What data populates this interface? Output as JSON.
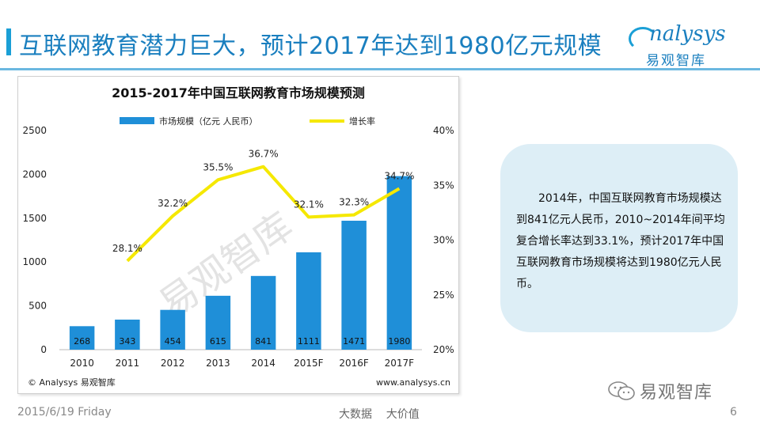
{
  "header": {
    "title": "互联网教育潜力巨大，预计2017年达到1980亿元规模",
    "logo_word": "nalysys",
    "logo_sub": "易观智库"
  },
  "chart_data": {
    "type": "bar+line",
    "title": "2015-2017年中国互联网教育市场规模预测",
    "categories": [
      "2010",
      "2011",
      "2012",
      "2013",
      "2014",
      "2015F",
      "2016F",
      "2017F"
    ],
    "series": [
      {
        "name": "市场规模（亿元 人民币）",
        "type": "bar",
        "axis": "left",
        "values": [
          268,
          343,
          454,
          615,
          841,
          1111,
          1471,
          1980
        ]
      },
      {
        "name": "增长率",
        "type": "line",
        "axis": "right",
        "values": [
          null,
          28.1,
          32.2,
          35.5,
          36.7,
          32.1,
          32.3,
          34.7
        ],
        "labels": [
          "",
          "28.1%",
          "32.2%",
          "35.5%",
          "36.7%",
          "32.1%",
          "32.3%",
          "34.7%"
        ]
      }
    ],
    "left_axis": {
      "min": 0,
      "max": 2500,
      "ticks": [
        "0",
        "500",
        "1000",
        "1500",
        "2000",
        "2500"
      ]
    },
    "right_axis": {
      "min": 20,
      "max": 40,
      "ticks": [
        "20%",
        "25%",
        "30%",
        "35%",
        "40%"
      ]
    },
    "watermark": "易观智库",
    "source_left": "© Analysys 易观智库",
    "source_right": "www.analysys.cn",
    "colors": {
      "bar": "#1f8fd8",
      "line": "#f5e800"
    }
  },
  "callout": {
    "text": "2014年，中国互联网教育市场规模达到841亿元人民币，2010~2014年间平均复合增长率达到33.1%，预计2017年中国互联网教育市场规模将达到1980亿元人民币。"
  },
  "footer": {
    "date": "2015/6/19 Friday",
    "slogan": "大数据    大价值",
    "page": "6",
    "wechat": "易观智库"
  }
}
